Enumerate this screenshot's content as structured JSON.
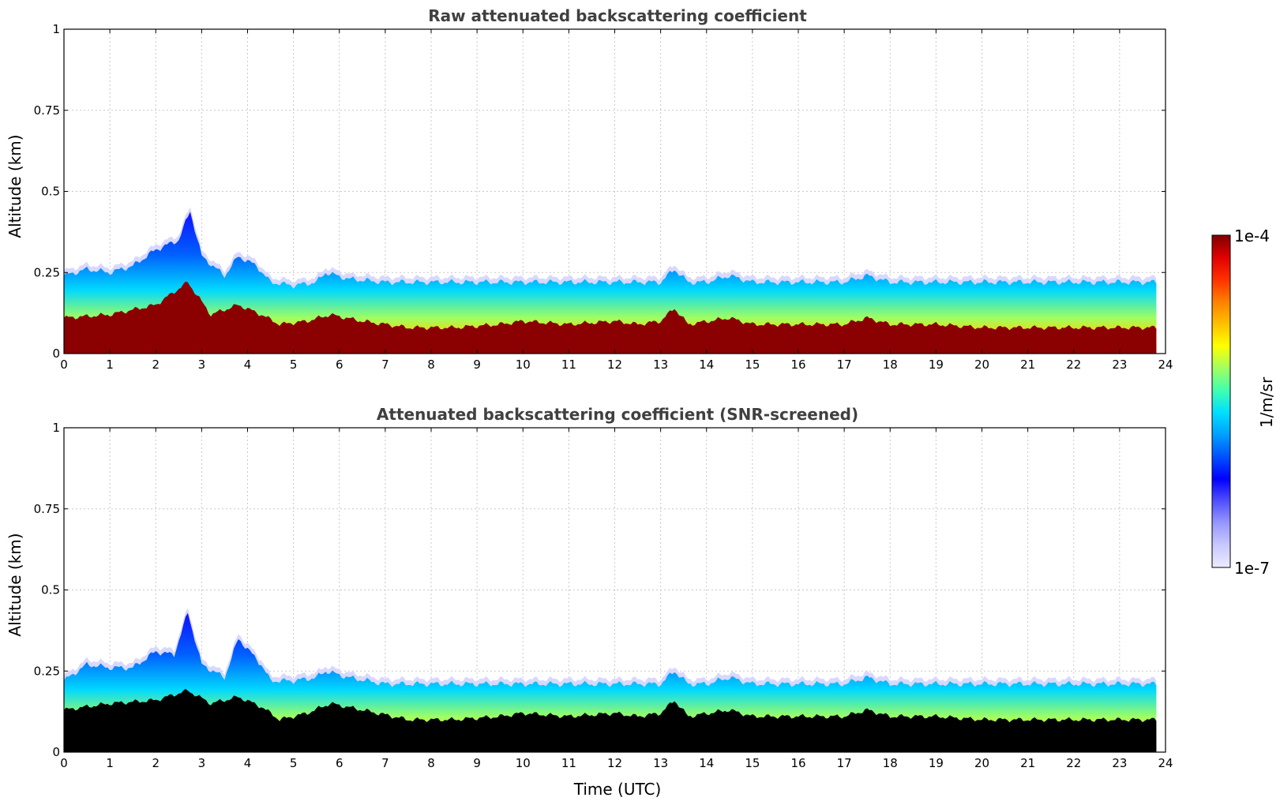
{
  "chart_data": [
    {
      "type": "heatmap",
      "title": "Raw attenuated backscattering coefficient",
      "xlabel": "",
      "ylabel": "Altitude (km)",
      "xlim": [
        0,
        24
      ],
      "ylim": [
        0,
        1
      ],
      "xticks": [
        "0",
        "1",
        "2",
        "3",
        "4",
        "5",
        "6",
        "7",
        "8",
        "9",
        "10",
        "11",
        "12",
        "13",
        "14",
        "15",
        "16",
        "17",
        "18",
        "19",
        "20",
        "21",
        "22",
        "23",
        "24"
      ],
      "yticks": [
        "0",
        "0.25",
        "0.5",
        "0.75",
        "1"
      ],
      "grid": true,
      "below_layer": "saturated",
      "layer_top_km": [
        [
          0,
          0.24
        ],
        [
          0.5,
          0.26
        ],
        [
          1,
          0.25
        ],
        [
          1.5,
          0.27
        ],
        [
          2,
          0.32
        ],
        [
          2.5,
          0.35
        ],
        [
          2.75,
          0.44
        ],
        [
          3,
          0.3
        ],
        [
          3.5,
          0.24
        ],
        [
          3.8,
          0.3
        ],
        [
          4.2,
          0.27
        ],
        [
          4.5,
          0.22
        ],
        [
          5,
          0.21
        ],
        [
          5.5,
          0.22
        ],
        [
          5.7,
          0.25
        ],
        [
          6.2,
          0.23
        ],
        [
          7,
          0.22
        ],
        [
          8,
          0.22
        ],
        [
          9,
          0.22
        ],
        [
          10,
          0.22
        ],
        [
          11,
          0.22
        ],
        [
          12,
          0.22
        ],
        [
          13,
          0.22
        ],
        [
          13.3,
          0.26
        ],
        [
          13.6,
          0.22
        ],
        [
          14,
          0.22
        ],
        [
          14.5,
          0.24
        ],
        [
          15,
          0.22
        ],
        [
          16,
          0.22
        ],
        [
          17,
          0.22
        ],
        [
          17.5,
          0.24
        ],
        [
          18,
          0.22
        ],
        [
          19,
          0.22
        ],
        [
          20,
          0.22
        ],
        [
          21,
          0.22
        ],
        [
          22,
          0.22
        ],
        [
          23,
          0.22
        ],
        [
          23.8,
          0.22
        ]
      ],
      "dense_top_km": [
        [
          0,
          0.11
        ],
        [
          1,
          0.12
        ],
        [
          2,
          0.15
        ],
        [
          2.7,
          0.22
        ],
        [
          3.2,
          0.12
        ],
        [
          3.8,
          0.15
        ],
        [
          4.3,
          0.12
        ],
        [
          4.7,
          0.09
        ],
        [
          5.3,
          0.1
        ],
        [
          5.8,
          0.12
        ],
        [
          6.5,
          0.1
        ],
        [
          7.5,
          0.08
        ],
        [
          8.5,
          0.08
        ],
        [
          9.5,
          0.09
        ],
        [
          10,
          0.1
        ],
        [
          11,
          0.09
        ],
        [
          12,
          0.1
        ],
        [
          12.5,
          0.09
        ],
        [
          13,
          0.1
        ],
        [
          13.3,
          0.14
        ],
        [
          13.6,
          0.09
        ],
        [
          14.5,
          0.11
        ],
        [
          15,
          0.09
        ],
        [
          16,
          0.09
        ],
        [
          17,
          0.09
        ],
        [
          17.5,
          0.11
        ],
        [
          18,
          0.09
        ],
        [
          19,
          0.09
        ],
        [
          20,
          0.08
        ],
        [
          21,
          0.08
        ],
        [
          22,
          0.08
        ],
        [
          23,
          0.08
        ],
        [
          23.8,
          0.08
        ]
      ]
    },
    {
      "type": "heatmap",
      "title": "Attenuated backscattering coefficient (SNR-screened)",
      "xlabel": "Time (UTC)",
      "ylabel": "Altitude (km)",
      "xlim": [
        0,
        24
      ],
      "ylim": [
        0,
        1
      ],
      "xticks": [
        "0",
        "1",
        "2",
        "3",
        "4",
        "5",
        "6",
        "7",
        "8",
        "9",
        "10",
        "11",
        "12",
        "13",
        "14",
        "15",
        "16",
        "17",
        "18",
        "19",
        "20",
        "21",
        "22",
        "23",
        "24"
      ],
      "yticks": [
        "0",
        "0.25",
        "0.5",
        "0.75",
        "1"
      ],
      "grid": true,
      "below_layer": "screened",
      "layer_top_km": [
        [
          0,
          0.22
        ],
        [
          0.5,
          0.27
        ],
        [
          1,
          0.26
        ],
        [
          1.5,
          0.26
        ],
        [
          2,
          0.31
        ],
        [
          2.4,
          0.3
        ],
        [
          2.7,
          0.43
        ],
        [
          3,
          0.27
        ],
        [
          3.5,
          0.23
        ],
        [
          3.8,
          0.35
        ],
        [
          4.3,
          0.27
        ],
        [
          4.5,
          0.22
        ],
        [
          5,
          0.22
        ],
        [
          5.5,
          0.23
        ],
        [
          5.7,
          0.25
        ],
        [
          6.2,
          0.23
        ],
        [
          7,
          0.21
        ],
        [
          8,
          0.21
        ],
        [
          9,
          0.21
        ],
        [
          10,
          0.21
        ],
        [
          11,
          0.21
        ],
        [
          12,
          0.21
        ],
        [
          13,
          0.21
        ],
        [
          13.3,
          0.25
        ],
        [
          13.6,
          0.21
        ],
        [
          14,
          0.21
        ],
        [
          14.5,
          0.23
        ],
        [
          15,
          0.21
        ],
        [
          16,
          0.21
        ],
        [
          17,
          0.21
        ],
        [
          17.5,
          0.23
        ],
        [
          18,
          0.21
        ],
        [
          19,
          0.21
        ],
        [
          20,
          0.21
        ],
        [
          21,
          0.21
        ],
        [
          22,
          0.21
        ],
        [
          23,
          0.21
        ],
        [
          23.8,
          0.21
        ]
      ],
      "dense_top_km": [
        [
          0,
          0.13
        ],
        [
          1,
          0.15
        ],
        [
          2,
          0.16
        ],
        [
          2.7,
          0.19
        ],
        [
          3.2,
          0.15
        ],
        [
          3.8,
          0.17
        ],
        [
          4.3,
          0.14
        ],
        [
          4.7,
          0.1
        ],
        [
          5.3,
          0.12
        ],
        [
          5.8,
          0.15
        ],
        [
          6.5,
          0.13
        ],
        [
          7.5,
          0.1
        ],
        [
          8.5,
          0.1
        ],
        [
          9.5,
          0.11
        ],
        [
          10,
          0.12
        ],
        [
          11,
          0.11
        ],
        [
          12,
          0.12
        ],
        [
          12.5,
          0.11
        ],
        [
          13,
          0.12
        ],
        [
          13.3,
          0.16
        ],
        [
          13.6,
          0.11
        ],
        [
          14.5,
          0.13
        ],
        [
          15,
          0.11
        ],
        [
          16,
          0.11
        ],
        [
          17,
          0.11
        ],
        [
          17.5,
          0.13
        ],
        [
          18,
          0.11
        ],
        [
          19,
          0.11
        ],
        [
          20,
          0.1
        ],
        [
          21,
          0.1
        ],
        [
          22,
          0.1
        ],
        [
          23,
          0.1
        ],
        [
          23.8,
          0.1
        ]
      ]
    }
  ],
  "colorbar": {
    "label": "1/m/sr",
    "max_label": "1e-4",
    "min_label": "1e-7",
    "colors": [
      "#ececff",
      "#c8c8ff",
      "#9898ff",
      "#5050ff",
      "#0000ff",
      "#0050ff",
      "#00a0ff",
      "#00e0ff",
      "#40ffb0",
      "#a0ff60",
      "#ffff00",
      "#ffc000",
      "#ff8000",
      "#ff3000",
      "#e00000",
      "#800000"
    ]
  }
}
